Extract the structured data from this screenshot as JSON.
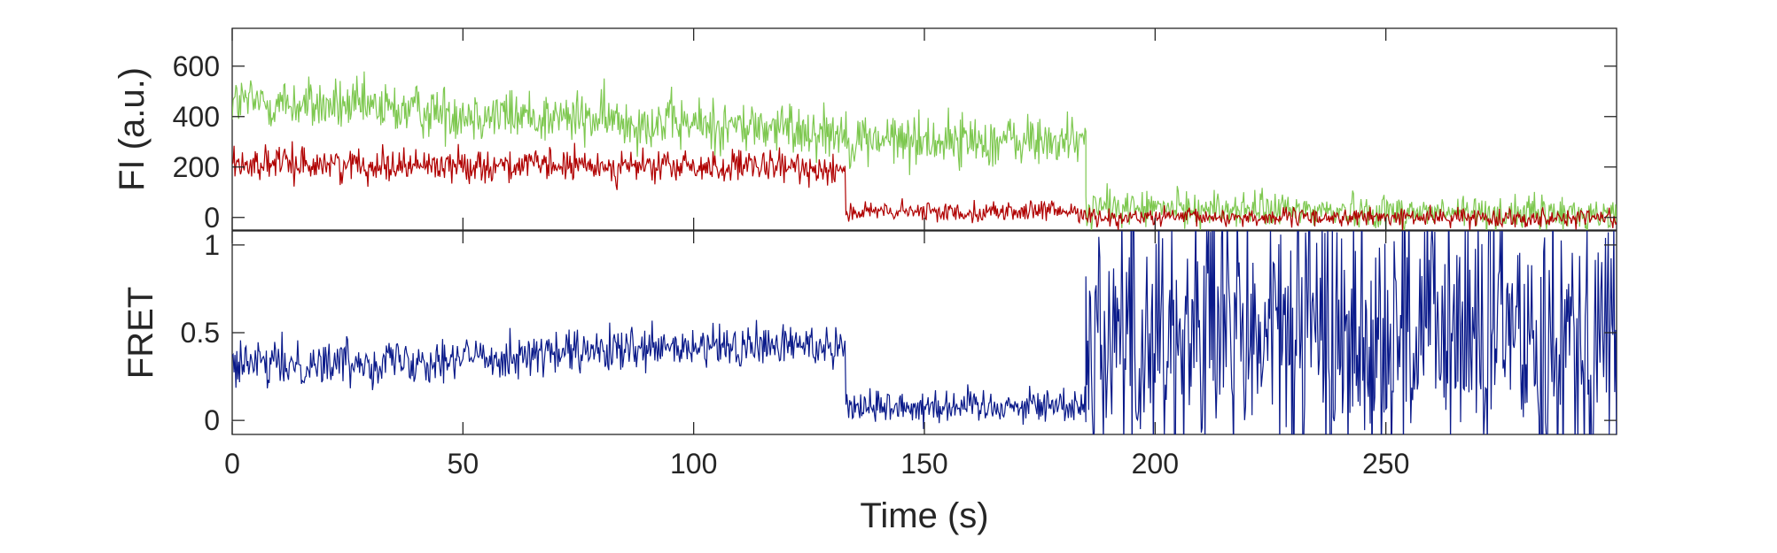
{
  "chart_data": [
    {
      "type": "line",
      "panel": "top",
      "ylabel": "FI (a.u.)",
      "xlabel": "",
      "xlim": [
        0,
        300
      ],
      "ylim": [
        -50,
        750
      ],
      "yticks": [
        0,
        200,
        400,
        600
      ],
      "xticks": [],
      "grid": false,
      "legend": "none",
      "series": [
        {
          "color": "#7ec850",
          "segments": [
            {
              "t0": 0,
              "t1": 133,
              "start": 460,
              "end": 340,
              "noise": 75
            },
            {
              "t0": 133,
              "t1": 185,
              "start": 310,
              "end": 300,
              "noise": 75
            },
            {
              "t0": 185,
              "t1": 300,
              "start": 40,
              "end": 10,
              "noise": 50
            }
          ]
        },
        {
          "color": "#b00000",
          "segments": [
            {
              "t0": 0,
              "t1": 133,
              "start": 215,
              "end": 195,
              "noise": 45
            },
            {
              "t0": 133,
              "t1": 185,
              "start": 20,
              "end": 25,
              "noise": 28
            },
            {
              "t0": 185,
              "t1": 300,
              "start": 0,
              "end": 0,
              "noise": 25
            }
          ]
        }
      ]
    },
    {
      "type": "line",
      "panel": "bottom",
      "ylabel": "FRET",
      "xlabel": "Time (s)",
      "xlim": [
        0,
        300
      ],
      "ylim": [
        -0.08,
        1.08
      ],
      "yticks": [
        0,
        0.5,
        1
      ],
      "ytick_labels": [
        "0",
        "0.5",
        "1"
      ],
      "xticks": [
        0,
        50,
        100,
        150,
        200,
        250
      ],
      "grid": false,
      "legend": "none",
      "series": [
        {
          "color": "#0a1a8a",
          "segments": [
            {
              "t0": 0,
              "t1": 133,
              "start": 0.31,
              "end": 0.44,
              "noise": 0.09
            },
            {
              "t0": 133,
              "t1": 185,
              "start": 0.08,
              "end": 0.09,
              "noise": 0.07
            },
            {
              "t0": 185,
              "t1": 300,
              "start": 0.5,
              "end": 0.5,
              "noise": 0.55
            }
          ]
        }
      ]
    }
  ]
}
